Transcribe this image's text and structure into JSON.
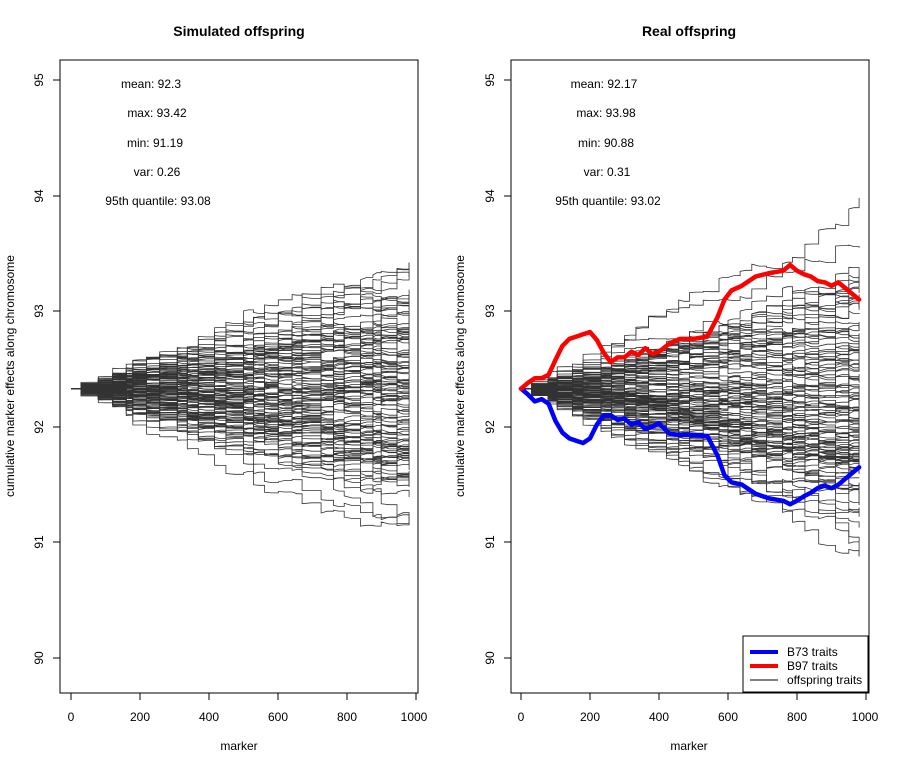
{
  "chart_data": [
    {
      "type": "line",
      "title": "Simulated offspring",
      "xlabel": "marker",
      "ylabel": "cumulative marker effects along chromosome",
      "xlim": [
        0,
        1000
      ],
      "ylim": [
        90,
        95
      ],
      "xticks": [
        "0",
        "200",
        "400",
        "600",
        "800",
        "1000"
      ],
      "yticks": [
        "90",
        "91",
        "92",
        "93",
        "94",
        "95"
      ],
      "grid": false,
      "start_value": 92.33,
      "marker_count": 980,
      "offspring_line_count": 120,
      "stats": {
        "mean": "mean: 92.3",
        "max": "max: 93.42",
        "min": "min: 91.19",
        "var": "var: 0.26",
        "q95": "95th quantile: 93.08"
      },
      "endpoint_summary": {
        "mean": 92.3,
        "max": 93.42,
        "min": 91.19,
        "var": 0.26,
        "q95": 93.08
      },
      "highlight_series": []
    },
    {
      "type": "line",
      "title": "Real offspring",
      "xlabel": "marker",
      "ylabel": "cumulative marker effects along chromosome",
      "xlim": [
        0,
        1000
      ],
      "ylim": [
        90,
        95
      ],
      "xticks": [
        "0",
        "200",
        "400",
        "600",
        "800",
        "1000"
      ],
      "yticks": [
        "90",
        "91",
        "92",
        "93",
        "94",
        "95"
      ],
      "grid": false,
      "start_value": 92.33,
      "marker_count": 980,
      "offspring_line_count": 120,
      "stats": {
        "mean": "mean: 92.17",
        "max": "max: 93.98",
        "min": "min: 90.88",
        "var": "var: 0.31",
        "q95": "95th quantile: 93.02"
      },
      "endpoint_summary": {
        "mean": 92.17,
        "max": 93.98,
        "min": 90.88,
        "var": 0.31,
        "q95": 93.02
      },
      "highlight_series": [
        {
          "name": "B73 traits",
          "color": "#0000ff",
          "x": [
            0,
            20,
            40,
            60,
            80,
            100,
            120,
            140,
            160,
            180,
            200,
            220,
            240,
            260,
            280,
            300,
            320,
            340,
            360,
            380,
            400,
            430,
            460,
            500,
            540,
            570,
            590,
            610,
            640,
            680,
            720,
            760,
            780,
            800,
            820,
            840,
            860,
            880,
            900,
            920,
            940,
            960,
            980
          ],
          "values": [
            92.33,
            92.28,
            92.22,
            92.24,
            92.2,
            92.05,
            91.95,
            91.9,
            91.88,
            91.86,
            91.9,
            92.02,
            92.1,
            92.1,
            92.06,
            92.07,
            92.02,
            92.04,
            91.98,
            92.0,
            92.03,
            91.94,
            91.93,
            91.93,
            91.92,
            91.75,
            91.58,
            91.52,
            91.5,
            91.42,
            91.38,
            91.36,
            91.33,
            91.36,
            91.4,
            91.43,
            91.47,
            91.49,
            91.47,
            91.5,
            91.55,
            91.6,
            91.65
          ]
        },
        {
          "name": "B97 traits",
          "color": "#ff0000",
          "x": [
            0,
            20,
            40,
            60,
            80,
            100,
            120,
            140,
            160,
            180,
            200,
            220,
            240,
            260,
            280,
            300,
            320,
            340,
            360,
            380,
            400,
            430,
            460,
            500,
            540,
            570,
            590,
            610,
            640,
            680,
            720,
            760,
            780,
            800,
            820,
            840,
            860,
            880,
            900,
            920,
            940,
            960,
            980
          ],
          "values": [
            92.33,
            92.38,
            92.42,
            92.42,
            92.45,
            92.58,
            92.7,
            92.76,
            92.78,
            92.8,
            92.82,
            92.75,
            92.64,
            92.56,
            92.6,
            92.6,
            92.65,
            92.62,
            92.68,
            92.63,
            92.65,
            92.72,
            92.76,
            92.76,
            92.78,
            92.95,
            93.1,
            93.18,
            93.22,
            93.3,
            93.33,
            93.35,
            93.4,
            93.35,
            93.32,
            93.3,
            93.26,
            93.25,
            93.22,
            93.25,
            93.2,
            93.15,
            93.1
          ]
        }
      ],
      "legend": {
        "placement": "bottom-right",
        "entries": [
          {
            "label": "B73 traits",
            "color": "#0000ff"
          },
          {
            "label": "B97 traits",
            "color": "#ff0000"
          },
          {
            "label": "offspring traits",
            "color": "#000000"
          }
        ]
      }
    }
  ],
  "colors": {
    "offspring_line": "#333333",
    "b73": "#0000ff",
    "b97": "#ff0000",
    "axis": "#000000"
  }
}
